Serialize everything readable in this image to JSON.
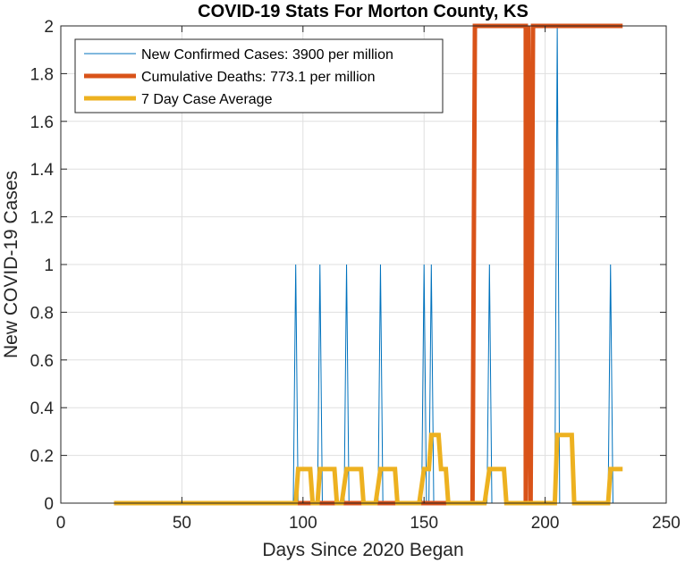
{
  "chart_data": {
    "type": "line",
    "title": "COVID-19 Stats For Morton County, KS",
    "xlabel": "Days Since 2020 Began",
    "ylabel": "New COVID-19 Cases",
    "xlim": [
      0,
      250
    ],
    "ylim": [
      0,
      2
    ],
    "xticks": [
      0,
      50,
      100,
      150,
      200,
      250
    ],
    "yticks": [
      0,
      0.2,
      0.4,
      0.6,
      0.8,
      1,
      1.2,
      1.4,
      1.6,
      1.8,
      2
    ],
    "xtick_labels": [
      "0",
      "50",
      "100",
      "150",
      "200",
      "250"
    ],
    "ytick_labels": [
      "0",
      "0.2",
      "0.4",
      "0.6",
      "0.8",
      "1",
      "1.2",
      "1.4",
      "1.6",
      "1.8",
      "2"
    ],
    "grid": true,
    "legend_position": "top-left",
    "series": [
      {
        "name": "New Confirmed Cases: 3900 per million",
        "color": "#0072BD",
        "points": [
          [
            22,
            0
          ],
          [
            96,
            0
          ],
          [
            97,
            1
          ],
          [
            98,
            0
          ],
          [
            106,
            0
          ],
          [
            107,
            1
          ],
          [
            108,
            0
          ],
          [
            117,
            0
          ],
          [
            118,
            1
          ],
          [
            119,
            0
          ],
          [
            131,
            0
          ],
          [
            132,
            1
          ],
          [
            133,
            0
          ],
          [
            149,
            0
          ],
          [
            150,
            1
          ],
          [
            151,
            0
          ],
          [
            152,
            0
          ],
          [
            153,
            1
          ],
          [
            154,
            0
          ],
          [
            176,
            0
          ],
          [
            177,
            1
          ],
          [
            178,
            0
          ],
          [
            204,
            0
          ],
          [
            205,
            2
          ],
          [
            206,
            0
          ],
          [
            226,
            0
          ],
          [
            227,
            1
          ],
          [
            228,
            0
          ],
          [
            232,
            0
          ]
        ]
      },
      {
        "name": "Cumulative Deaths: 773.1 per million",
        "color": "#D95319",
        "points": [
          [
            22,
            0
          ],
          [
            170,
            0
          ],
          [
            171,
            2
          ],
          [
            192,
            2
          ],
          [
            192,
            0
          ],
          [
            193,
            2
          ],
          [
            194,
            0
          ],
          [
            195,
            2
          ],
          [
            232,
            2
          ]
        ]
      },
      {
        "name": "7 Day Case Average",
        "color": "#EDB120",
        "points": [
          [
            22,
            0
          ],
          [
            97,
            0
          ],
          [
            98,
            0.1429
          ],
          [
            103,
            0.1429
          ],
          [
            104,
            0
          ],
          [
            105,
            0
          ],
          [
            106,
            0
          ],
          [
            107,
            0.1429
          ],
          [
            113,
            0.1429
          ],
          [
            114,
            0
          ],
          [
            115,
            0
          ],
          [
            116,
            0
          ],
          [
            118,
            0.1429
          ],
          [
            124,
            0.1429
          ],
          [
            125,
            0
          ],
          [
            130,
            0
          ],
          [
            132,
            0.1429
          ],
          [
            138,
            0.1429
          ],
          [
            139,
            0
          ],
          [
            148,
            0
          ],
          [
            150,
            0.1429
          ],
          [
            152,
            0.1429
          ],
          [
            153,
            0.2857
          ],
          [
            156,
            0.2857
          ],
          [
            157,
            0.1429
          ],
          [
            159,
            0.1429
          ],
          [
            160,
            0
          ],
          [
            175,
            0
          ],
          [
            177,
            0.1429
          ],
          [
            183,
            0.1429
          ],
          [
            184,
            0
          ],
          [
            204,
            0
          ],
          [
            205,
            0.2857
          ],
          [
            211,
            0.2857
          ],
          [
            212,
            0
          ],
          [
            226,
            0
          ],
          [
            227,
            0.1429
          ],
          [
            232,
            0.1429
          ]
        ]
      }
    ]
  }
}
